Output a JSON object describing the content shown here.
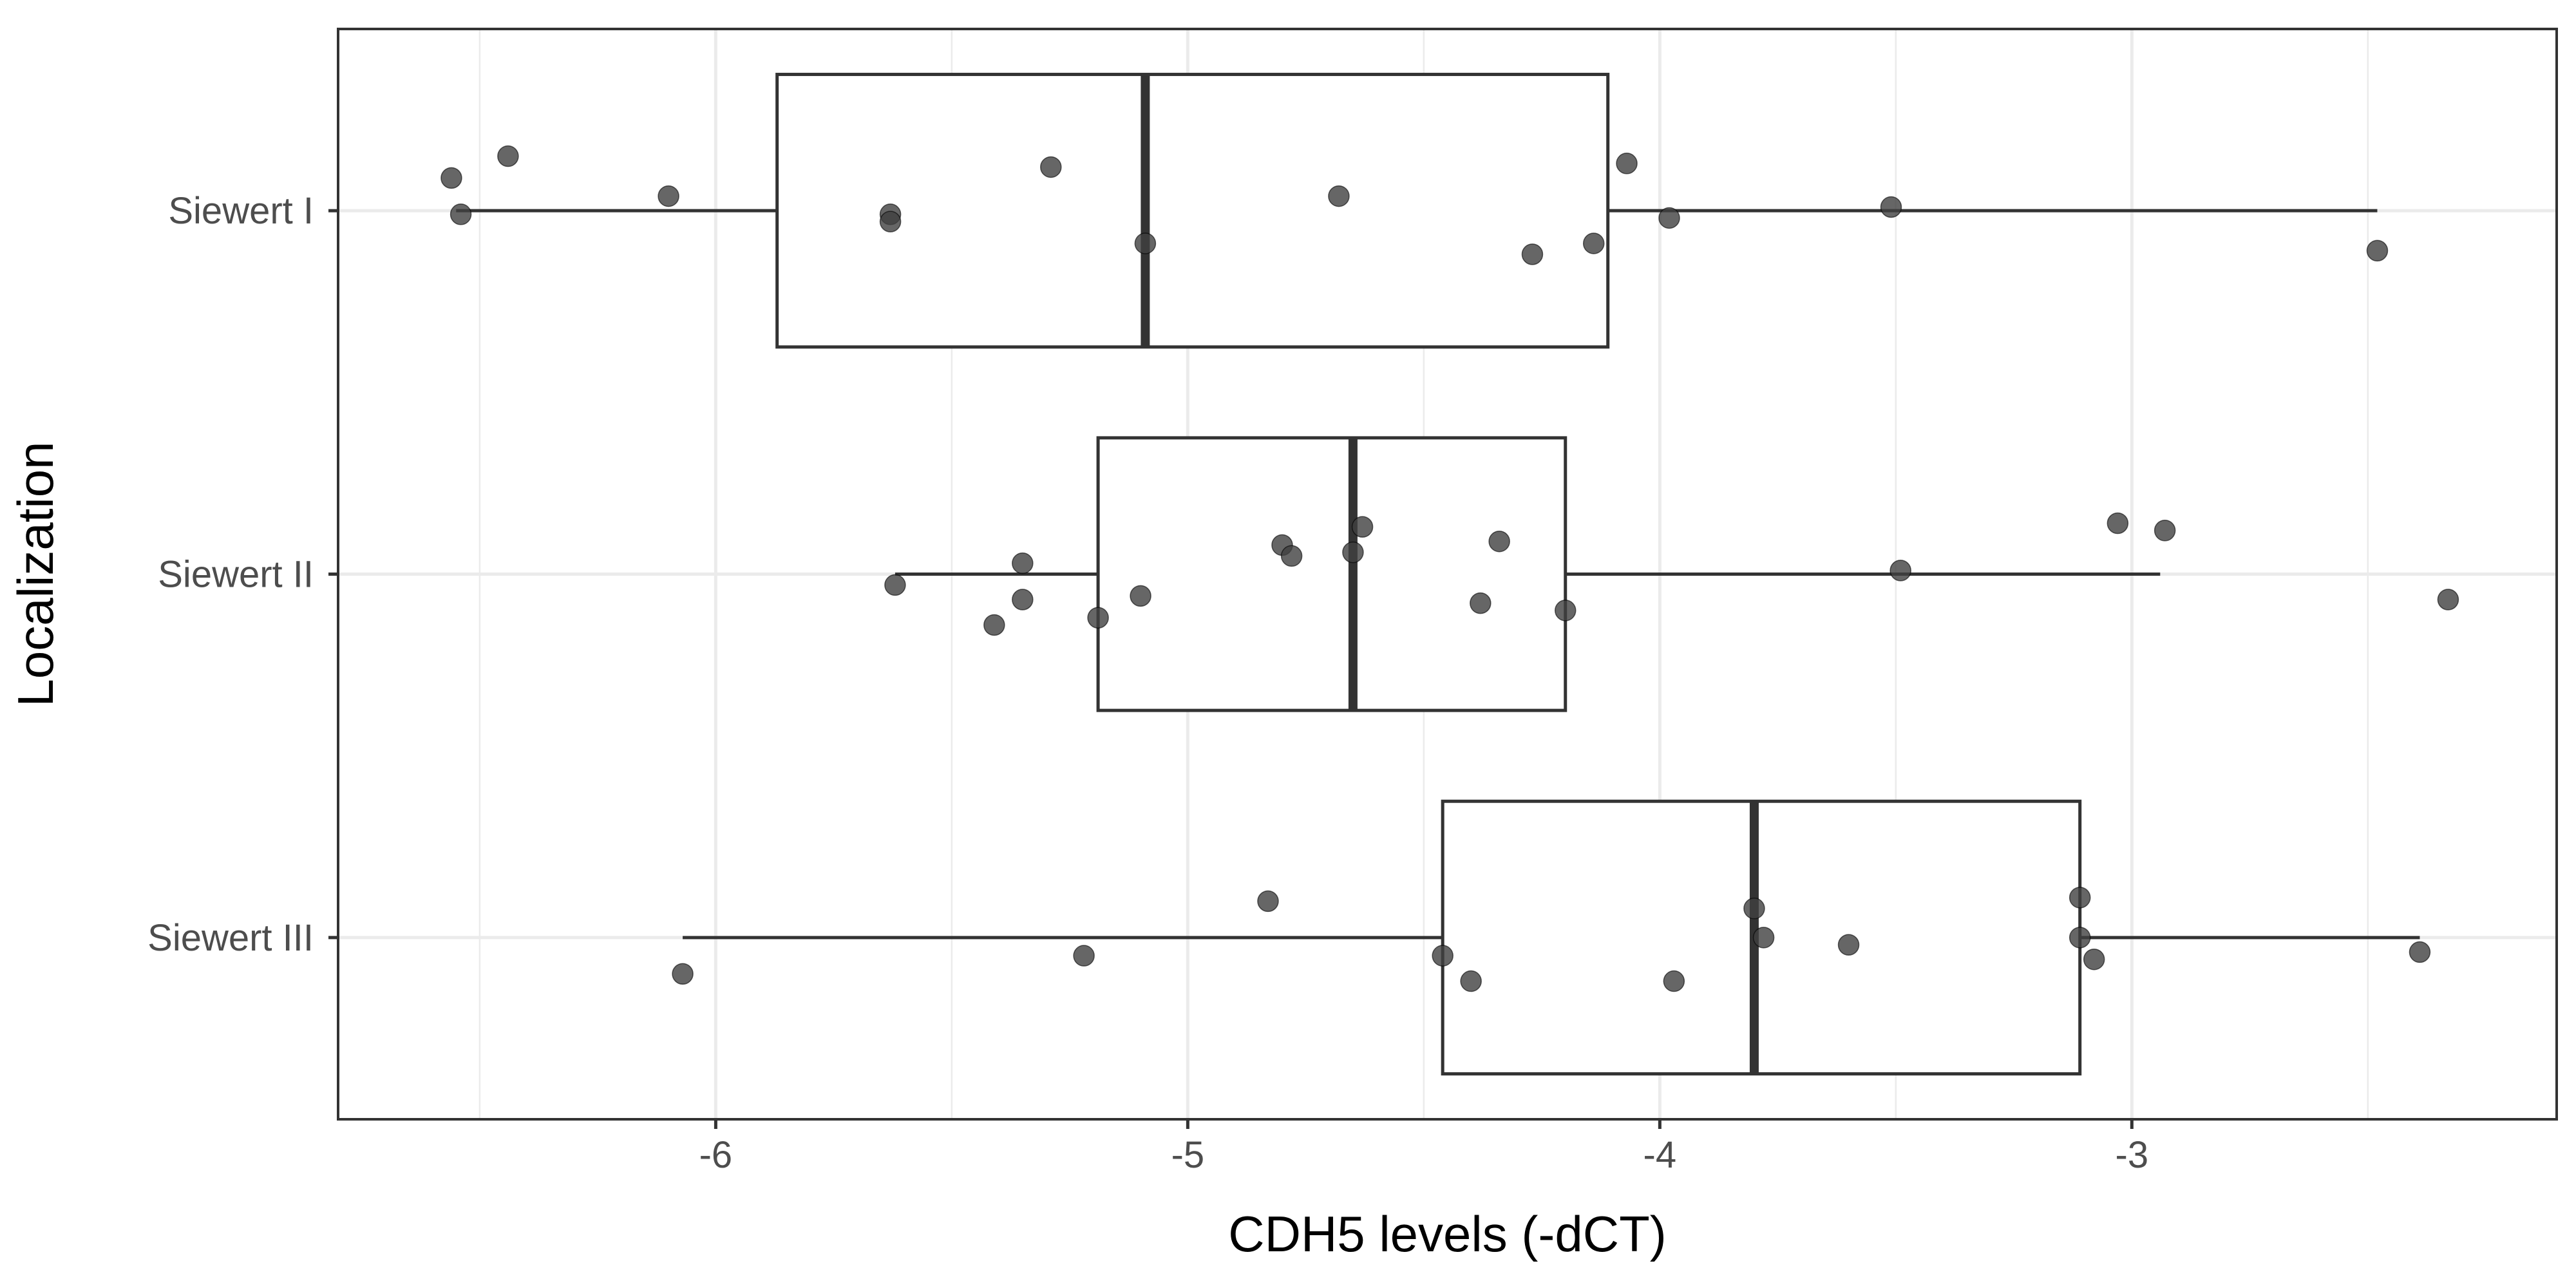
{
  "chart_data": {
    "type": "boxplot",
    "orientation": "horizontal",
    "xlabel": "CDH5 levels (-dCT)",
    "ylabel": "Localization",
    "xlim": [
      -6.8,
      -2.1
    ],
    "xticks": [
      -6,
      -5,
      -4,
      -3
    ],
    "xtick_labels": [
      "-6",
      "-5",
      "-4",
      "-3"
    ],
    "grid": true,
    "categories": [
      "Siewert I",
      "Siewert II",
      "Siewert III"
    ],
    "boxes": [
      {
        "category": "Siewert I",
        "whisker_low": -6.55,
        "q1": -5.87,
        "median": -5.09,
        "q3": -4.11,
        "whisker_high": -2.48
      },
      {
        "category": "Siewert II",
        "whisker_low": -5.62,
        "q1": -5.19,
        "median": -4.65,
        "q3": -4.2,
        "whisker_high": -2.94
      },
      {
        "category": "Siewert III",
        "whisker_low": -6.07,
        "q1": -4.46,
        "median": -3.8,
        "q3": -3.11,
        "whisker_high": -2.39
      }
    ],
    "points": [
      {
        "category": "Siewert I",
        "x": -6.56,
        "jitter": 0.09
      },
      {
        "category": "Siewert I",
        "x": -6.44,
        "jitter": 0.15
      },
      {
        "category": "Siewert I",
        "x": -6.1,
        "jitter": 0.04
      },
      {
        "category": "Siewert I",
        "x": -6.54,
        "jitter": -0.01
      },
      {
        "category": "Siewert I",
        "x": -5.63,
        "jitter": -0.01
      },
      {
        "category": "Siewert I",
        "x": -5.63,
        "jitter": -0.03
      },
      {
        "category": "Siewert I",
        "x": -5.29,
        "jitter": 0.12
      },
      {
        "category": "Siewert I",
        "x": -5.09,
        "jitter": -0.09
      },
      {
        "category": "Siewert I",
        "x": -4.68,
        "jitter": 0.04
      },
      {
        "category": "Siewert I",
        "x": -4.27,
        "jitter": -0.12
      },
      {
        "category": "Siewert I",
        "x": -4.14,
        "jitter": -0.09
      },
      {
        "category": "Siewert I",
        "x": -4.07,
        "jitter": 0.13
      },
      {
        "category": "Siewert I",
        "x": -3.98,
        "jitter": -0.02
      },
      {
        "category": "Siewert I",
        "x": -3.51,
        "jitter": 0.01
      },
      {
        "category": "Siewert I",
        "x": -2.48,
        "jitter": -0.11
      },
      {
        "category": "Siewert II",
        "x": -5.62,
        "jitter": -0.03
      },
      {
        "category": "Siewert II",
        "x": -5.35,
        "jitter": 0.03
      },
      {
        "category": "Siewert II",
        "x": -5.35,
        "jitter": -0.07
      },
      {
        "category": "Siewert II",
        "x": -5.41,
        "jitter": -0.14
      },
      {
        "category": "Siewert II",
        "x": -5.19,
        "jitter": -0.12
      },
      {
        "category": "Siewert II",
        "x": -5.1,
        "jitter": -0.06
      },
      {
        "category": "Siewert II",
        "x": -4.8,
        "jitter": 0.08
      },
      {
        "category": "Siewert II",
        "x": -4.78,
        "jitter": 0.05
      },
      {
        "category": "Siewert II",
        "x": -4.65,
        "jitter": 0.06
      },
      {
        "category": "Siewert II",
        "x": -4.63,
        "jitter": 0.13
      },
      {
        "category": "Siewert II",
        "x": -4.34,
        "jitter": 0.09
      },
      {
        "category": "Siewert II",
        "x": -4.38,
        "jitter": -0.08
      },
      {
        "category": "Siewert II",
        "x": -4.2,
        "jitter": -0.1
      },
      {
        "category": "Siewert II",
        "x": -3.49,
        "jitter": 0.01
      },
      {
        "category": "Siewert II",
        "x": -3.03,
        "jitter": 0.14
      },
      {
        "category": "Siewert II",
        "x": -2.93,
        "jitter": 0.12
      },
      {
        "category": "Siewert II",
        "x": -2.33,
        "jitter": -0.07
      },
      {
        "category": "Siewert III",
        "x": -6.07,
        "jitter": -0.1
      },
      {
        "category": "Siewert III",
        "x": -5.22,
        "jitter": -0.05
      },
      {
        "category": "Siewert III",
        "x": -4.83,
        "jitter": 0.1
      },
      {
        "category": "Siewert III",
        "x": -4.46,
        "jitter": -0.05
      },
      {
        "category": "Siewert III",
        "x": -4.4,
        "jitter": -0.12
      },
      {
        "category": "Siewert III",
        "x": -3.97,
        "jitter": -0.12
      },
      {
        "category": "Siewert III",
        "x": -3.8,
        "jitter": 0.08
      },
      {
        "category": "Siewert III",
        "x": -3.78,
        "jitter": 0.0
      },
      {
        "category": "Siewert III",
        "x": -3.6,
        "jitter": -0.02
      },
      {
        "category": "Siewert III",
        "x": -3.11,
        "jitter": 0.11
      },
      {
        "category": "Siewert III",
        "x": -3.11,
        "jitter": 0.0
      },
      {
        "category": "Siewert III",
        "x": -3.08,
        "jitter": -0.06
      },
      {
        "category": "Siewert III",
        "x": -2.39,
        "jitter": -0.04
      }
    ],
    "colors": {
      "box_stroke": "#333333",
      "point_fill": "#404040",
      "grid": "#ebebeb",
      "panel_border": "#333333"
    }
  }
}
